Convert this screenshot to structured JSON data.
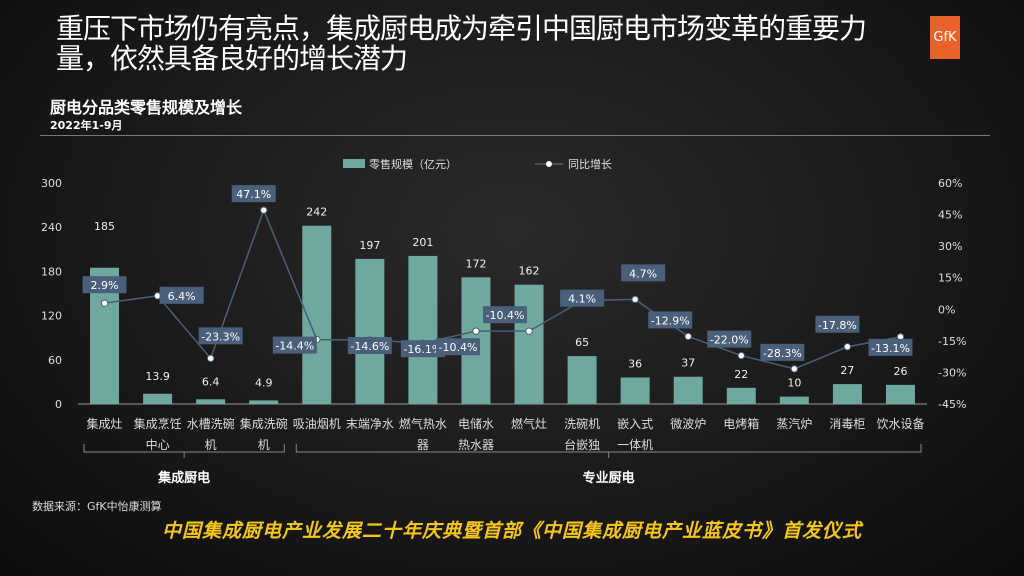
{
  "title": "重压下市场仍有亮点，集成厨电成为牵引中国厨电市场变革的重要力量，依然具备良好的增长潜力",
  "logo": "GfK",
  "subtitle": "厨电分品类零售规模及增长",
  "date": "2022年1-9月",
  "source": "数据来源：GfK中怡康测算",
  "banner": "中国集成厨电产业发展二十年庆典暨首部《中国集成厨电产业蓝皮书》首发仪式",
  "chart_data": {
    "type": "bar",
    "categories": [
      [
        "集成灶"
      ],
      [
        "集成烹饪",
        "中心"
      ],
      [
        "水槽洗碗",
        "机"
      ],
      [
        "集成洗碗",
        "机"
      ],
      [
        "吸油烟机"
      ],
      [
        "末端净水"
      ],
      [
        "燃气热水",
        "器"
      ],
      [
        "电储水",
        "热水器"
      ],
      [
        "燃气灶"
      ],
      [
        "洗碗机",
        "台嵌独"
      ],
      [
        "嵌入式",
        "一体机"
      ],
      [
        "微波炉"
      ],
      [
        "电烤箱"
      ],
      [
        "蒸汽炉"
      ],
      [
        "消毒柜"
      ],
      [
        "饮水设备"
      ]
    ],
    "series": [
      {
        "name": "零售规模（亿元）",
        "type": "bar",
        "axis": "left",
        "color": "#6fa89e",
        "values": [
          185,
          13.9,
          6.4,
          4.9,
          242,
          197,
          201,
          172,
          162,
          65,
          36,
          37,
          22,
          10,
          27,
          26
        ]
      },
      {
        "name": "同比增长",
        "type": "line",
        "axis": "right",
        "color": "#4a5f7a",
        "values": [
          2.9,
          6.4,
          -23.3,
          47.1,
          -14.4,
          -14.6,
          -16.1,
          -10.4,
          -10.4,
          4.1,
          4.7,
          -12.9,
          -22.0,
          -28.3,
          -17.8,
          -13.1
        ]
      }
    ],
    "left_axis": {
      "ticks": [
        "0",
        "60",
        "120",
        "180",
        "240",
        "300"
      ],
      "ylim": [
        0,
        300
      ]
    },
    "right_axis": {
      "ticks": [
        "-45%",
        "-30%",
        "-15%",
        "0%",
        "15%",
        "30%",
        "45%",
        "60%"
      ],
      "ylim": [
        -45,
        60
      ]
    },
    "groups": [
      {
        "label": "集成厨电",
        "from": 0,
        "to": 3
      },
      {
        "label": "专业厨电",
        "from": 4,
        "to": 15
      }
    ],
    "legend": "top"
  }
}
